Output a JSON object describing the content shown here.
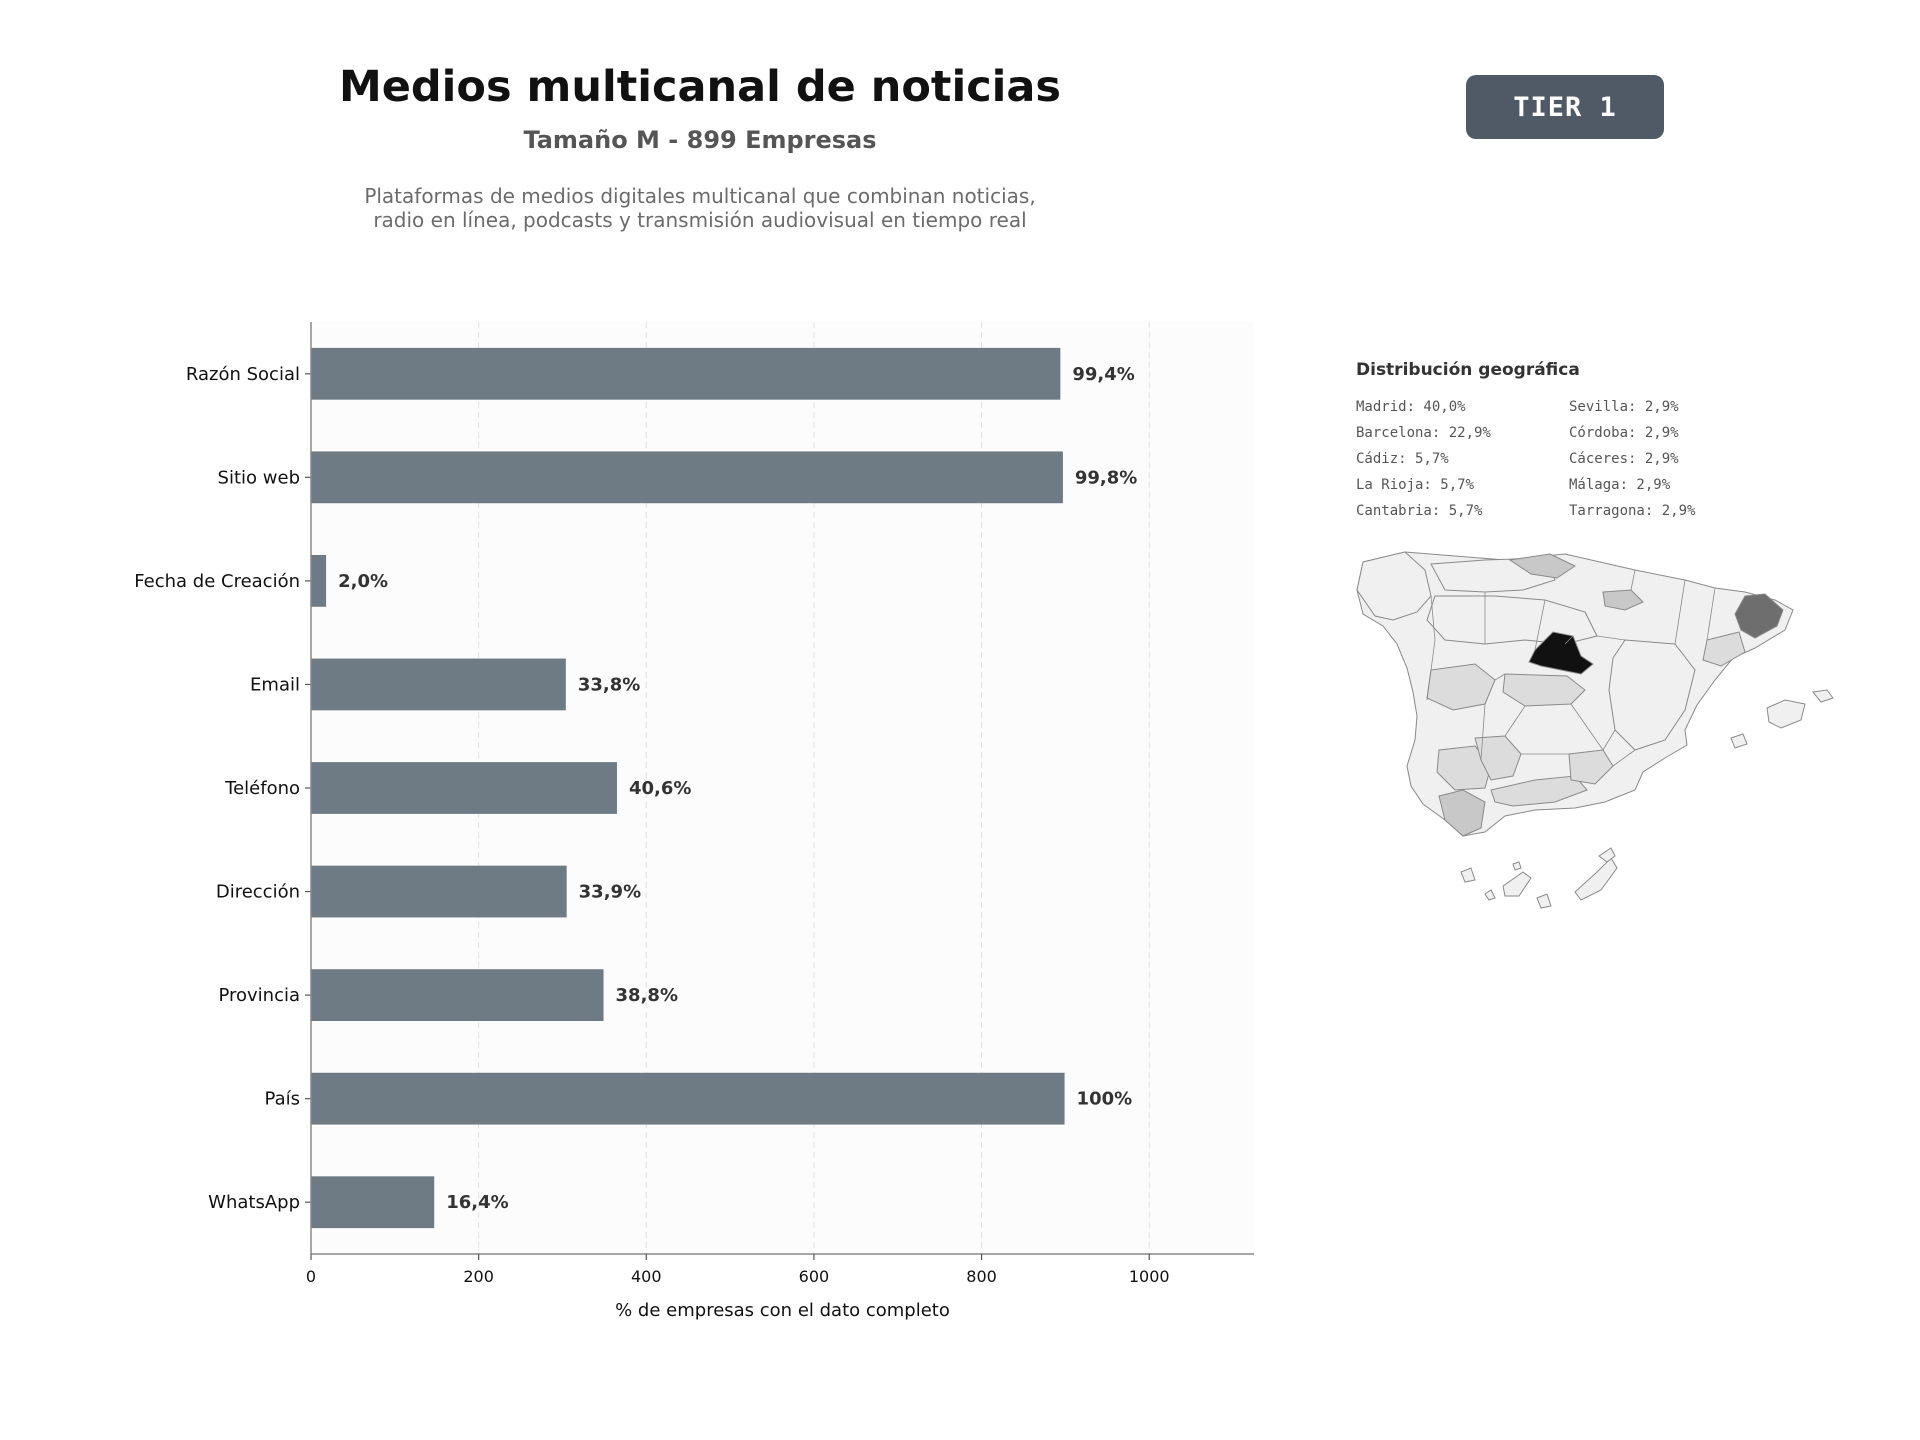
{
  "header": {
    "title": "Medios multicanal de noticias",
    "subtitle": "Tamaño M - 899 Empresas",
    "description_line1": "Plataformas de medios digitales multicanal que combinan noticias,",
    "description_line2": "radio en línea, podcasts y transmisión audiovisual en tiempo real",
    "badge": "TIER 1"
  },
  "chart_data": {
    "type": "bar",
    "orientation": "horizontal",
    "categories": [
      "Razón Social",
      "Sitio web",
      "Fecha de Creación",
      "Email",
      "Teléfono",
      "Dirección",
      "Provincia",
      "País",
      "WhatsApp"
    ],
    "values": [
      894,
      897,
      18,
      304,
      365,
      305,
      349,
      899,
      147
    ],
    "data_labels": [
      "99,4%",
      "99,8%",
      "2,0%",
      "33,8%",
      "40,6%",
      "33,9%",
      "38,8%",
      "100%",
      "16,4%"
    ],
    "xlabel": "% de empresas con el dato completo",
    "ylabel": "",
    "xlim": [
      0,
      1125
    ],
    "xticks": [
      0,
      200,
      400,
      600,
      800,
      1000
    ],
    "grid": "vertical dashed",
    "bar_color": "#6e7a84"
  },
  "geo": {
    "title": "Distribución geográfica",
    "items": [
      "Madrid: 40,0%",
      "Sevilla: 2,9%",
      "Barcelona: 22,9%",
      "Córdoba: 2,9%",
      "Cádiz: 5,7%",
      "Cáceres: 2,9%",
      "La Rioja: 5,7%",
      "Málaga: 2,9%",
      "Cantabria: 5,7%",
      "Tarragona: 2,9%"
    ],
    "map_colors": {
      "base": "#f0f0f0",
      "madrid": "#111111",
      "barcelona": "#6e6e6e",
      "medium": "#c8c8c8",
      "light": "#dcdcdc",
      "border": "#8a8a8a"
    }
  }
}
